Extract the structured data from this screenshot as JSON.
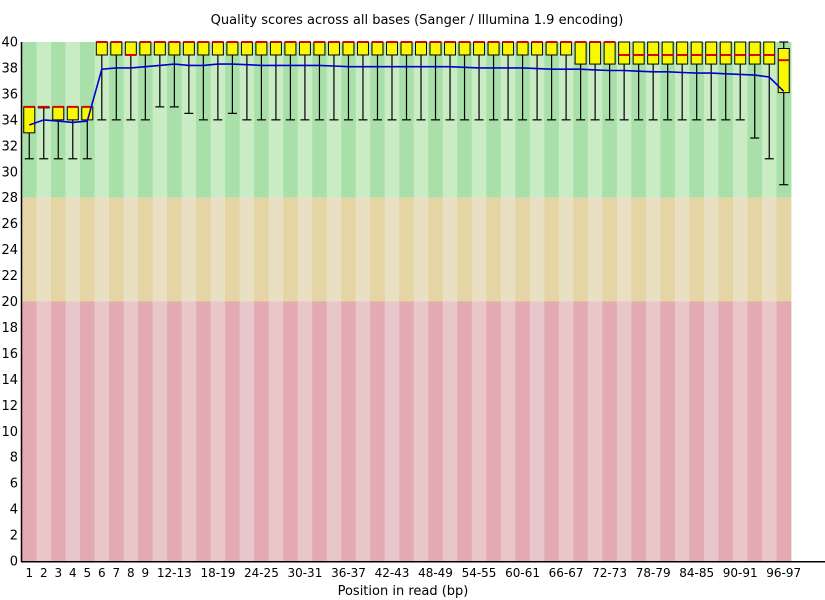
{
  "chart_data": {
    "type": "boxplot",
    "title": "Quality scores across all bases (Sanger / Illumina 1.9 encoding)",
    "xlabel": "Position in read (bp)",
    "ylabel": "",
    "ylim": [
      0,
      40
    ],
    "yticks": [
      0,
      2,
      4,
      6,
      8,
      10,
      12,
      14,
      16,
      18,
      20,
      22,
      24,
      26,
      28,
      30,
      32,
      34,
      36,
      38,
      40
    ],
    "xticks_shown": [
      "1",
      "2",
      "3",
      "4",
      "5",
      "6",
      "7",
      "8",
      "9",
      "12-13",
      "18-19",
      "24-25",
      "30-31",
      "36-37",
      "42-43",
      "48-49",
      "54-55",
      "60-61",
      "66-67",
      "72-73",
      "78-79",
      "84-85",
      "90-91",
      "96-97"
    ],
    "grid": false,
    "legend_position": "none",
    "zones": [
      {
        "name": "good",
        "from": 28,
        "to": 40,
        "dark": "#a9e0a9",
        "light": "#c9ecc5"
      },
      {
        "name": "medium",
        "from": 20,
        "to": 28,
        "dark": "#e5d5a4",
        "light": "#e9dfc2"
      },
      {
        "name": "poor",
        "from": 0,
        "to": 20,
        "dark": "#e3abb1",
        "light": "#e9c6ca"
      }
    ],
    "colors": {
      "box_fill": "#f8f800",
      "box_border": "#000000",
      "median": "#dd0000",
      "whisker": "#000000",
      "mean_line": "#0000cc",
      "axis": "#000000"
    },
    "bins": [
      {
        "label": "1",
        "q1": 33,
        "median": 35,
        "q3": 35,
        "lo": 31,
        "hi": 35,
        "mean": 33.6
      },
      {
        "label": "2",
        "q1": 35,
        "median": 35,
        "q3": 35,
        "lo": 31,
        "hi": 35,
        "mean": 34.0
      },
      {
        "label": "3",
        "q1": 34,
        "median": 35,
        "q3": 35,
        "lo": 31,
        "hi": 35,
        "mean": 33.9
      },
      {
        "label": "4",
        "q1": 34,
        "median": 35,
        "q3": 35,
        "lo": 31,
        "hi": 35,
        "mean": 33.8
      },
      {
        "label": "5",
        "q1": 34,
        "median": 35,
        "q3": 35,
        "lo": 31,
        "hi": 35,
        "mean": 33.9
      },
      {
        "label": "6",
        "q1": 39,
        "median": 40,
        "q3": 40,
        "lo": 34,
        "hi": 40,
        "mean": 37.9
      },
      {
        "label": "7",
        "q1": 39,
        "median": 40,
        "q3": 40,
        "lo": 34,
        "hi": 40,
        "mean": 38.0
      },
      {
        "label": "8",
        "q1": 39,
        "median": 39,
        "q3": 40,
        "lo": 34,
        "hi": 40,
        "mean": 38.0
      },
      {
        "label": "9",
        "q1": 39,
        "median": 40,
        "q3": 40,
        "lo": 34,
        "hi": 40,
        "mean": 38.1
      },
      {
        "label": "10-11",
        "q1": 39,
        "median": 40,
        "q3": 40,
        "lo": 35,
        "hi": 40,
        "mean": 38.2
      },
      {
        "label": "12-13",
        "q1": 39,
        "median": 40,
        "q3": 40,
        "lo": 35,
        "hi": 40,
        "mean": 38.3
      },
      {
        "label": "14-15",
        "q1": 39,
        "median": 40,
        "q3": 40,
        "lo": 34.5,
        "hi": 40,
        "mean": 38.2
      },
      {
        "label": "16-17",
        "q1": 39,
        "median": 40,
        "q3": 40,
        "lo": 34,
        "hi": 40,
        "mean": 38.2
      },
      {
        "label": "18-19",
        "q1": 39,
        "median": 40,
        "q3": 40,
        "lo": 34,
        "hi": 40,
        "mean": 38.3
      },
      {
        "label": "20-21",
        "q1": 39,
        "median": 40,
        "q3": 40,
        "lo": 34.5,
        "hi": 40,
        "mean": 38.3
      },
      {
        "label": "22-23",
        "q1": 39,
        "median": 40,
        "q3": 40,
        "lo": 34,
        "hi": 40,
        "mean": 38.25
      },
      {
        "label": "24-25",
        "q1": 39,
        "median": 40,
        "q3": 40,
        "lo": 34,
        "hi": 40,
        "mean": 38.2
      },
      {
        "label": "26-27",
        "q1": 39,
        "median": 40,
        "q3": 40,
        "lo": 34,
        "hi": 40,
        "mean": 38.2
      },
      {
        "label": "28-29",
        "q1": 39,
        "median": 40,
        "q3": 40,
        "lo": 34,
        "hi": 40,
        "mean": 38.2
      },
      {
        "label": "30-31",
        "q1": 39,
        "median": 40,
        "q3": 40,
        "lo": 34,
        "hi": 40,
        "mean": 38.2
      },
      {
        "label": "32-33",
        "q1": 39,
        "median": 40,
        "q3": 40,
        "lo": 34,
        "hi": 40,
        "mean": 38.2
      },
      {
        "label": "34-35",
        "q1": 39,
        "median": 40,
        "q3": 40,
        "lo": 34,
        "hi": 40,
        "mean": 38.15
      },
      {
        "label": "36-37",
        "q1": 39,
        "median": 40,
        "q3": 40,
        "lo": 34,
        "hi": 40,
        "mean": 38.1
      },
      {
        "label": "38-39",
        "q1": 39,
        "median": 40,
        "q3": 40,
        "lo": 34,
        "hi": 40,
        "mean": 38.1
      },
      {
        "label": "40-41",
        "q1": 39,
        "median": 40,
        "q3": 40,
        "lo": 34,
        "hi": 40,
        "mean": 38.1
      },
      {
        "label": "42-43",
        "q1": 39,
        "median": 40,
        "q3": 40,
        "lo": 34,
        "hi": 40,
        "mean": 38.1
      },
      {
        "label": "44-45",
        "q1": 39,
        "median": 40,
        "q3": 40,
        "lo": 34,
        "hi": 40,
        "mean": 38.1
      },
      {
        "label": "46-47",
        "q1": 39,
        "median": 40,
        "q3": 40,
        "lo": 34,
        "hi": 40,
        "mean": 38.1
      },
      {
        "label": "48-49",
        "q1": 39,
        "median": 40,
        "q3": 40,
        "lo": 34,
        "hi": 40,
        "mean": 38.1
      },
      {
        "label": "50-51",
        "q1": 39,
        "median": 40,
        "q3": 40,
        "lo": 34,
        "hi": 40,
        "mean": 38.1
      },
      {
        "label": "52-53",
        "q1": 39,
        "median": 40,
        "q3": 40,
        "lo": 34,
        "hi": 40,
        "mean": 38.05
      },
      {
        "label": "54-55",
        "q1": 39,
        "median": 40,
        "q3": 40,
        "lo": 34,
        "hi": 40,
        "mean": 38.0
      },
      {
        "label": "56-57",
        "q1": 39,
        "median": 40,
        "q3": 40,
        "lo": 34,
        "hi": 40,
        "mean": 38.0
      },
      {
        "label": "58-59",
        "q1": 39,
        "median": 40,
        "q3": 40,
        "lo": 34,
        "hi": 40,
        "mean": 38.0
      },
      {
        "label": "60-61",
        "q1": 39,
        "median": 40,
        "q3": 40,
        "lo": 34,
        "hi": 40,
        "mean": 38.0
      },
      {
        "label": "62-63",
        "q1": 39,
        "median": 40,
        "q3": 40,
        "lo": 34,
        "hi": 40,
        "mean": 37.95
      },
      {
        "label": "64-65",
        "q1": 39,
        "median": 40,
        "q3": 40,
        "lo": 34,
        "hi": 40,
        "mean": 37.9
      },
      {
        "label": "66-67",
        "q1": 39,
        "median": 40,
        "q3": 40,
        "lo": 34,
        "hi": 40,
        "mean": 37.9
      },
      {
        "label": "68-69",
        "q1": 38.3,
        "median": 40,
        "q3": 40,
        "lo": 34,
        "hi": 40,
        "mean": 37.9
      },
      {
        "label": "70-71",
        "q1": 38.3,
        "median": 40,
        "q3": 40,
        "lo": 34,
        "hi": 40,
        "mean": 37.85
      },
      {
        "label": "72-73",
        "q1": 38.3,
        "median": 40,
        "q3": 40,
        "lo": 34,
        "hi": 40,
        "mean": 37.8
      },
      {
        "label": "74-75",
        "q1": 38.3,
        "median": 39,
        "q3": 40,
        "lo": 34,
        "hi": 40,
        "mean": 37.8
      },
      {
        "label": "76-77",
        "q1": 38.3,
        "median": 39,
        "q3": 40,
        "lo": 34,
        "hi": 40,
        "mean": 37.75
      },
      {
        "label": "78-79",
        "q1": 38.3,
        "median": 39,
        "q3": 40,
        "lo": 34,
        "hi": 40,
        "mean": 37.7
      },
      {
        "label": "80-81",
        "q1": 38.3,
        "median": 39,
        "q3": 40,
        "lo": 34,
        "hi": 40,
        "mean": 37.7
      },
      {
        "label": "82-83",
        "q1": 38.3,
        "median": 39,
        "q3": 40,
        "lo": 34,
        "hi": 40,
        "mean": 37.65
      },
      {
        "label": "84-85",
        "q1": 38.3,
        "median": 39,
        "q3": 40,
        "lo": 34,
        "hi": 40,
        "mean": 37.6
      },
      {
        "label": "86-87",
        "q1": 38.3,
        "median": 39,
        "q3": 40,
        "lo": 34,
        "hi": 40,
        "mean": 37.6
      },
      {
        "label": "88-89",
        "q1": 38.3,
        "median": 39,
        "q3": 40,
        "lo": 34,
        "hi": 40,
        "mean": 37.55
      },
      {
        "label": "90-91",
        "q1": 38.3,
        "median": 39,
        "q3": 40,
        "lo": 34,
        "hi": 40,
        "mean": 37.5
      },
      {
        "label": "92-93",
        "q1": 38.3,
        "median": 39,
        "q3": 40,
        "lo": 32.6,
        "hi": 40,
        "mean": 37.45
      },
      {
        "label": "94-95",
        "q1": 38.3,
        "median": 39,
        "q3": 40,
        "lo": 31,
        "hi": 40,
        "mean": 37.3
      },
      {
        "label": "96-97",
        "q1": 36.1,
        "median": 38.6,
        "q3": 39.5,
        "lo": 29,
        "hi": 40,
        "mean": 36.2
      }
    ]
  }
}
